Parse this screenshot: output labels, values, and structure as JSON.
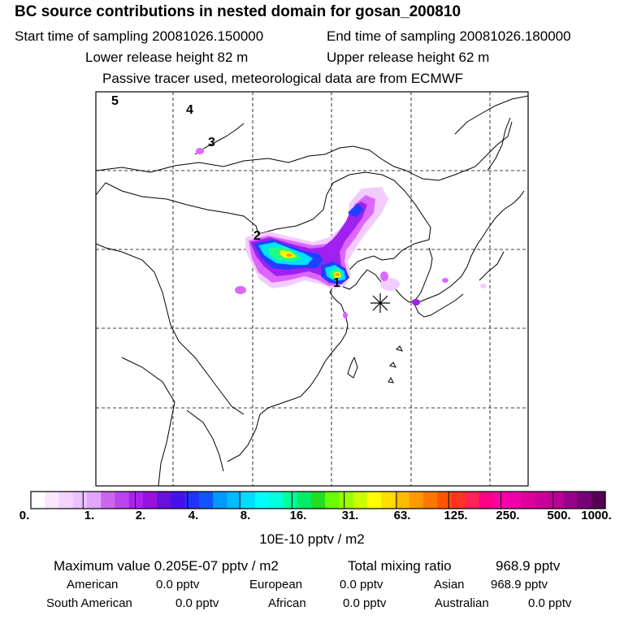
{
  "title": "BC  source contributions in nested domain for gosan_200810",
  "header": {
    "start_label": "Start time of sampling 20081026.150000",
    "end_label": "End time of sampling 20081026.180000",
    "lower_label": "Lower release height   82 m",
    "upper_label": "Upper release height   62 m",
    "tracer_note": "Passive tracer used, meteorological data are from ECMWF"
  },
  "map": {
    "place_markers": [
      "5",
      "4",
      "3",
      "2",
      "1"
    ],
    "receptor_marker": "asterisk-star-icon",
    "plume_colors": [
      "#f2ccff",
      "#dd66ff",
      "#a020f0",
      "#2040ff",
      "#00e0ff",
      "#20ff80",
      "#ffff00",
      "#ffa000"
    ]
  },
  "colorbar": {
    "colors": [
      "#ffffff",
      "#fae6ff",
      "#f3d3ff",
      "#ecc1ff",
      "#e3a6ff",
      "#cc66ee",
      "#bb44ee",
      "#aa22ee",
      "#9911dd",
      "#6611dd",
      "#4411ee",
      "#2233ff",
      "#1155ff",
      "#0099ff",
      "#00bbff",
      "#00ddff",
      "#00ffff",
      "#00ffdd",
      "#00ff99",
      "#00ee66",
      "#22dd22",
      "#66ff00",
      "#99ff00",
      "#ccff00",
      "#ffff00",
      "#ffdd00",
      "#ffbb00",
      "#ff9900",
      "#ff7700",
      "#ff5500",
      "#ff3322",
      "#ff2255",
      "#ff0088",
      "#ff00aa",
      "#ee00aa",
      "#dd0099",
      "#cc0099",
      "#bb0099",
      "#990088",
      "#770077",
      "#550055"
    ],
    "ticks": [
      "0.",
      "1.",
      "2.",
      "4.",
      "8.",
      "16.",
      "31.",
      "63.",
      "125.",
      "250.",
      "500.",
      "1000."
    ],
    "units": "10E-10 pptv / m2"
  },
  "stats": {
    "max_label": "Maximum value  0.205E-07 pptv / m2",
    "total_label": "Total mixing ratio",
    "total_value": "968.9 pptv",
    "american_label": "American",
    "american_value": "0.0 pptv",
    "european_label": "European",
    "european_value": "0.0 pptv",
    "asian_label": "Asian",
    "asian_value": "968.9 pptv",
    "south_american_label": "South American",
    "south_american_value": "0.0 pptv",
    "african_label": "African",
    "african_value": "0.0 pptv",
    "australian_label": "Australian",
    "australian_value": "0.0 pptv"
  }
}
